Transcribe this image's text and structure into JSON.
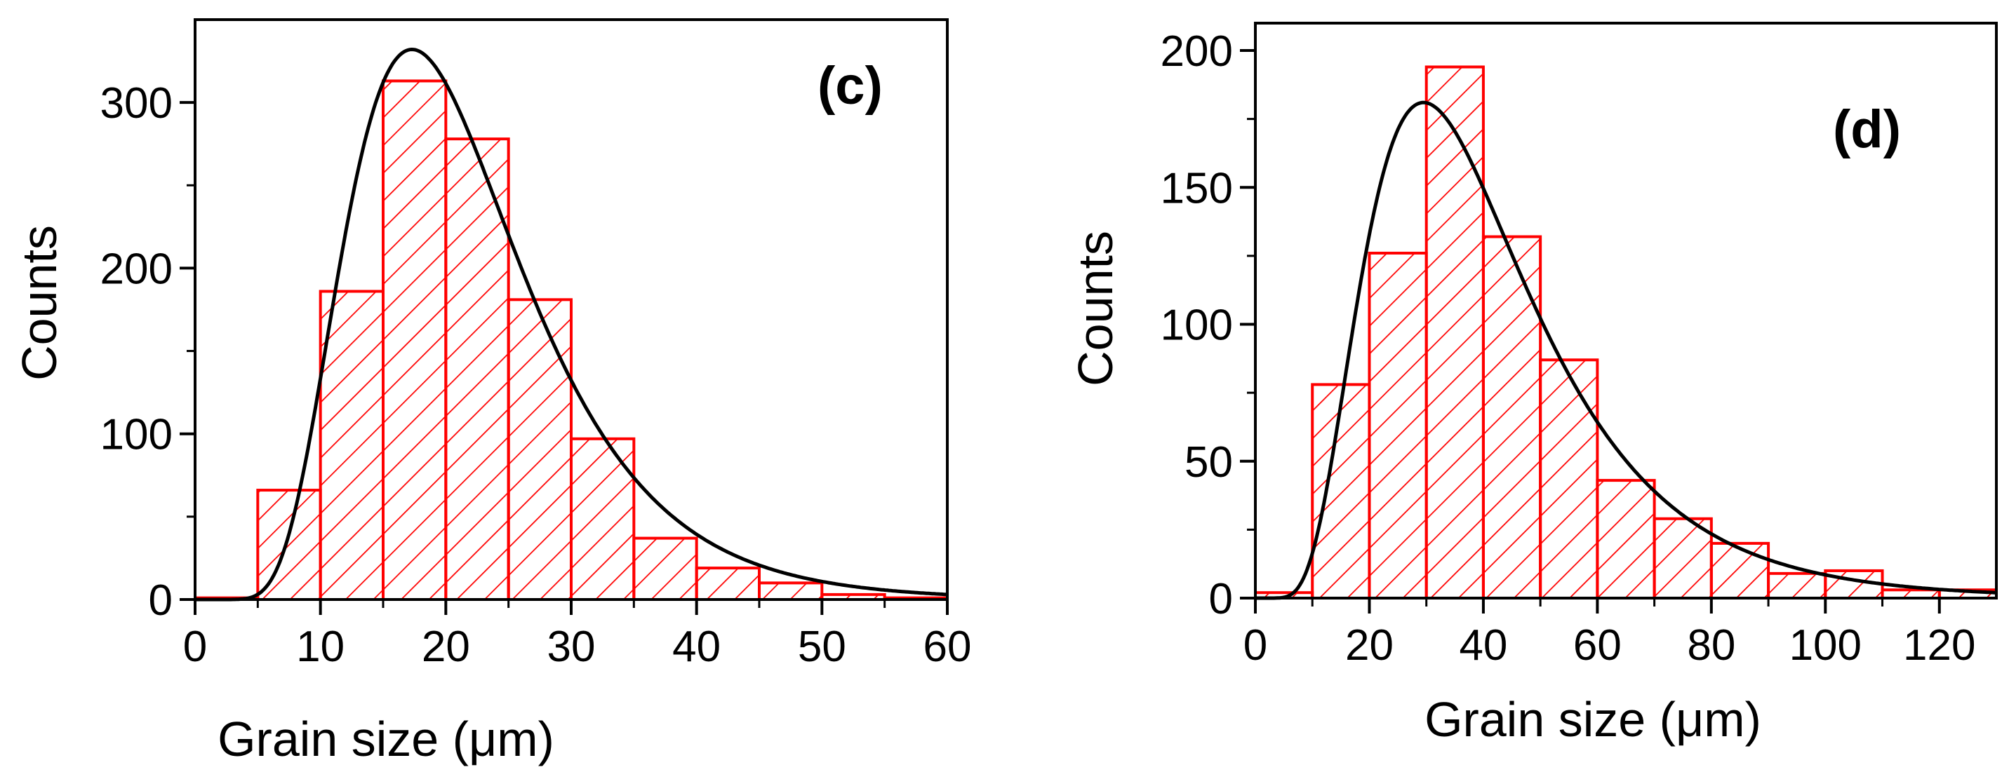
{
  "colors": {
    "bar": "#ff0000",
    "curve": "#000000",
    "axis": "#000000"
  },
  "chart_data": [
    {
      "type": "bar",
      "panel_label": "(c)",
      "xlabel": "Grain size (μm)",
      "ylabel": "Counts",
      "xlim": [
        0,
        60
      ],
      "ylim": [
        0,
        350
      ],
      "xticks": [
        "0",
        "10",
        "20",
        "30",
        "40",
        "50",
        "60"
      ],
      "yticks": [
        "0",
        "100",
        "200",
        "300"
      ],
      "bin_width": 5,
      "bin_starts": [
        0,
        5,
        10,
        15,
        20,
        25,
        30,
        35,
        40,
        45,
        50,
        55
      ],
      "values": [
        1,
        66,
        186,
        313,
        278,
        181,
        97,
        37,
        19,
        10,
        3,
        1
      ],
      "fit": {
        "type": "lognormal",
        "peak_x": 17.3,
        "peak_y": 332
      }
    },
    {
      "type": "bar",
      "panel_label": "(d)",
      "xlabel": "Grain size (μm)",
      "ylabel": "Counts",
      "xlim": [
        0,
        130
      ],
      "ylim": [
        0,
        210
      ],
      "xticks": [
        "0",
        "20",
        "40",
        "60",
        "80",
        "100",
        "120"
      ],
      "yticks": [
        "0",
        "50",
        "100",
        "150",
        "200"
      ],
      "bin_width": 10,
      "bin_starts": [
        0,
        10,
        20,
        30,
        40,
        50,
        60,
        70,
        80,
        90,
        100,
        110,
        120
      ],
      "values": [
        2,
        78,
        126,
        194,
        132,
        87,
        43,
        29,
        20,
        9,
        10,
        3,
        3
      ],
      "fit": {
        "type": "lognormal",
        "peak_x": 29.5,
        "peak_y": 181
      }
    }
  ]
}
